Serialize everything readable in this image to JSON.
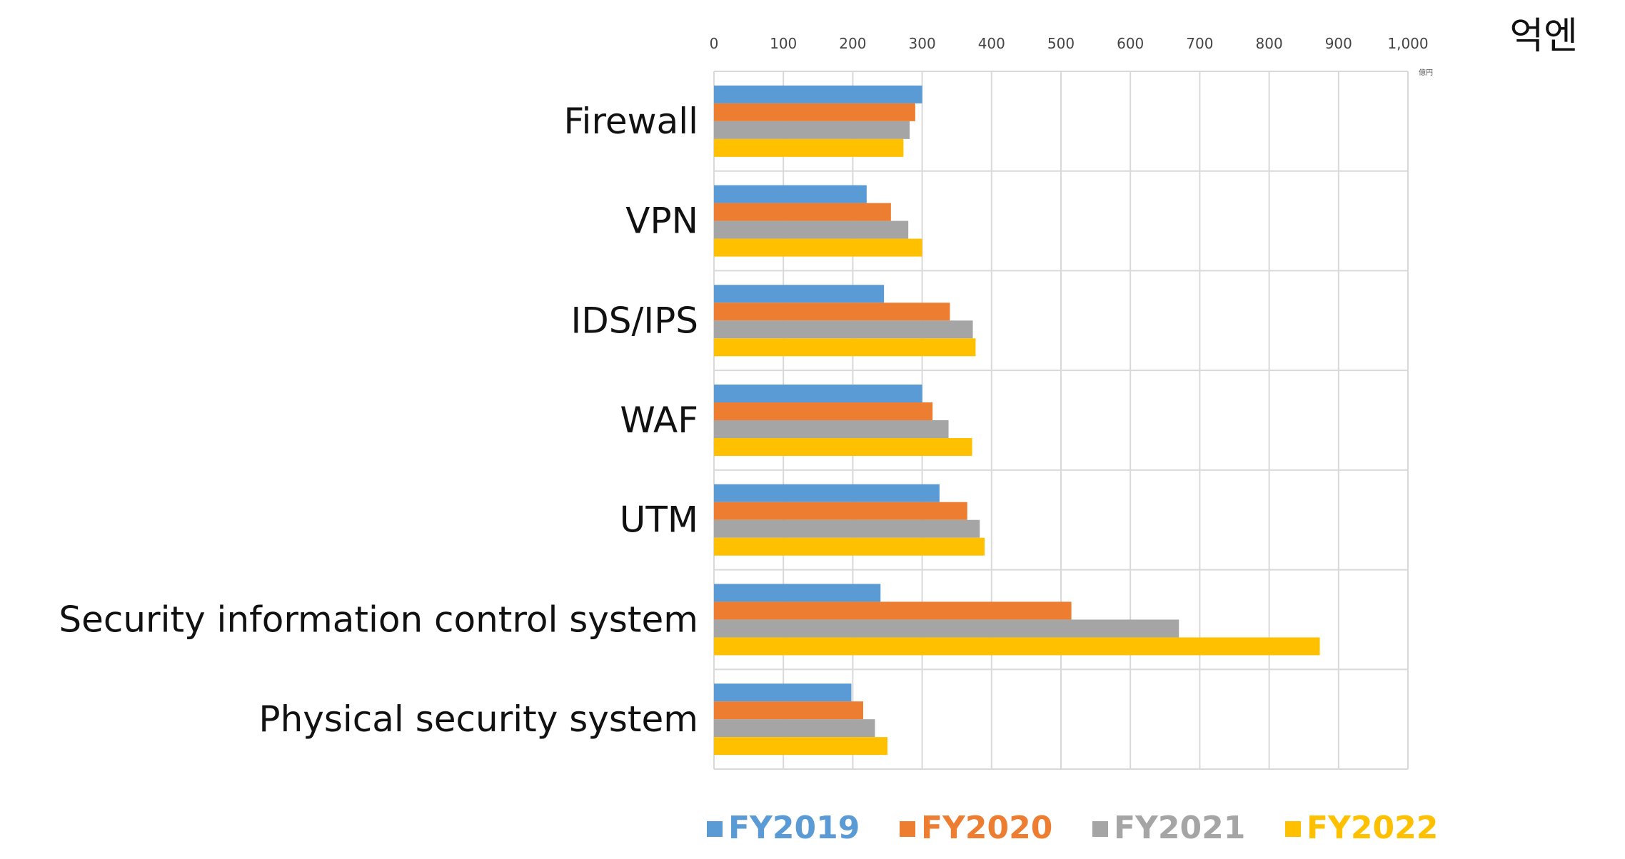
{
  "colors": {
    "FY2019": "#5B9BD5",
    "FY2020": "#ED7D31",
    "FY2021": "#A5A5A5",
    "FY2022": "#FFC000",
    "grid": "#D9D9D9"
  },
  "chart_data": {
    "type": "bar",
    "orientation": "horizontal",
    "title": "",
    "unit_label": "억엔",
    "unit_small": "億円",
    "categories": [
      "Firewall",
      "VPN",
      "IDS/IPS",
      "WAF",
      "UTM",
      "Security information control system",
      "Physical security system"
    ],
    "x_ticks": [
      "0",
      "100",
      "200",
      "300",
      "400",
      "500",
      "600",
      "700",
      "800",
      "900",
      "1,000"
    ],
    "xlim": [
      0,
      1000
    ],
    "grid": true,
    "legend_position": "bottom",
    "series": [
      {
        "name": "FY2019",
        "values": [
          300,
          220,
          245,
          300,
          325,
          240,
          198
        ]
      },
      {
        "name": "FY2020",
        "values": [
          290,
          255,
          340,
          315,
          365,
          515,
          215
        ]
      },
      {
        "name": "FY2021",
        "values": [
          282,
          280,
          373,
          338,
          383,
          670,
          232
        ]
      },
      {
        "name": "FY2022",
        "values": [
          273,
          300,
          377,
          372,
          390,
          873,
          250
        ]
      }
    ]
  }
}
